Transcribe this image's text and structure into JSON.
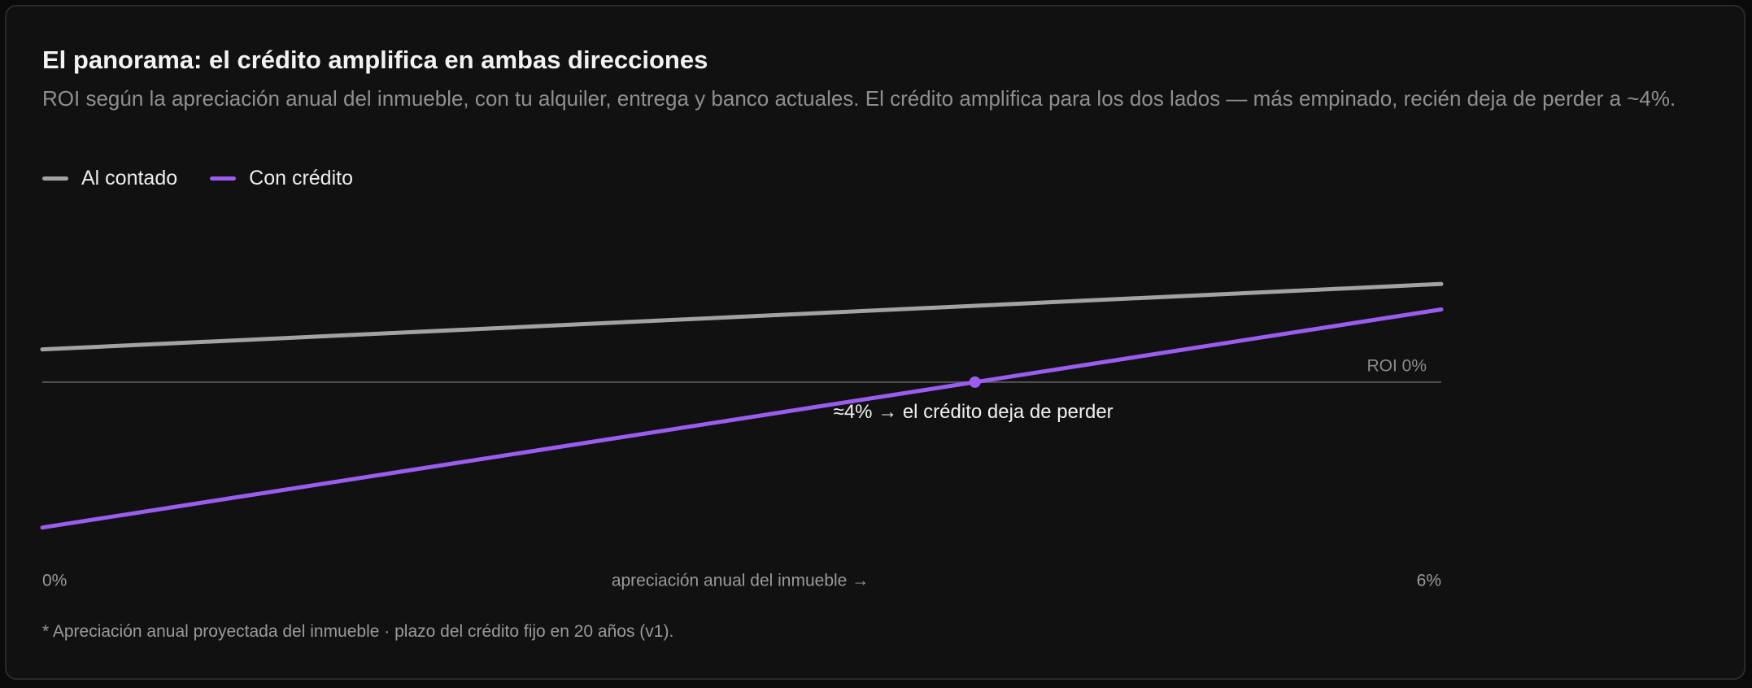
{
  "chart_data": {
    "type": "line",
    "title": "El panorama: el crédito amplifica en ambas direcciones",
    "subtitle": "ROI según la apreciación anual del inmueble, con tu alquiler, entrega y banco actuales. El crédito amplifica para los dos lados — más empinado, recién deja de perder a ~4%.",
    "x_label": "apreciación anual del inmueble →",
    "x": [
      0,
      6
    ],
    "xlim": [
      0,
      6
    ],
    "xticks": [
      {
        "value": 0,
        "label": "0%"
      },
      {
        "value": 6,
        "label": "6%"
      }
    ],
    "ylim": [
      -47,
      38
    ],
    "series": [
      {
        "name": "Al contado",
        "color": "#a3a3a3",
        "values": [
          9,
          27
        ]
      },
      {
        "name": "Con crédito",
        "color": "#9b5cf0",
        "values": [
          -40,
          20
        ]
      }
    ],
    "reference_line": {
      "value": 0,
      "label": "ROI 0%"
    },
    "annotation": {
      "x": 4,
      "y": 0,
      "text": "≈4% → el crédito deja de perder"
    },
    "footnote": "* Apreciación anual proyectada del inmueble · plazo del crédito fijo en 20 años (v1)."
  }
}
